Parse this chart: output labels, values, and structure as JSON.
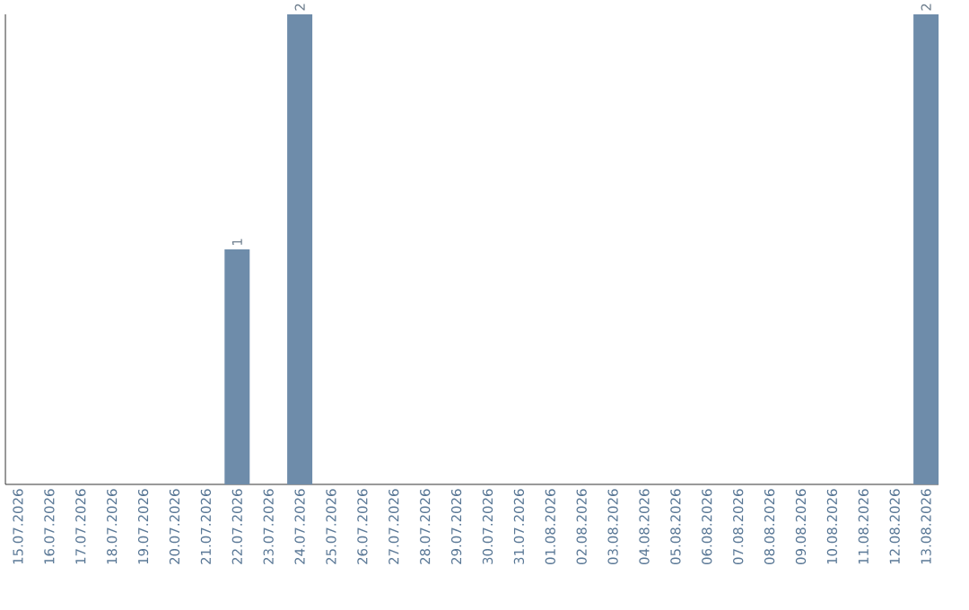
{
  "chart_data": {
    "type": "bar",
    "categories": [
      "15.07.2026",
      "16.07.2026",
      "17.07.2026",
      "18.07.2026",
      "19.07.2026",
      "20.07.2026",
      "21.07.2026",
      "22.07.2026",
      "23.07.2026",
      "24.07.2026",
      "25.07.2026",
      "26.07.2026",
      "27.07.2026",
      "28.07.2026",
      "29.07.2026",
      "30.07.2026",
      "31.07.2026",
      "01.08.2026",
      "02.08.2026",
      "03.08.2026",
      "04.08.2026",
      "05.08.2026",
      "06.08.2026",
      "07.08.2026",
      "08.08.2026",
      "09.08.2026",
      "10.08.2026",
      "11.08.2026",
      "12.08.2026",
      "13.08.2026"
    ],
    "values": [
      0,
      0,
      0,
      0,
      0,
      0,
      0,
      1,
      0,
      2,
      0,
      0,
      0,
      0,
      0,
      0,
      0,
      0,
      0,
      0,
      0,
      0,
      0,
      0,
      0,
      0,
      0,
      0,
      0,
      2
    ],
    "value_labels": [
      null,
      null,
      null,
      null,
      null,
      null,
      null,
      "1",
      null,
      "2",
      null,
      null,
      null,
      null,
      null,
      null,
      null,
      null,
      null,
      null,
      null,
      null,
      null,
      null,
      null,
      null,
      null,
      null,
      null,
      "2"
    ],
    "color": "#6e8caa",
    "tick_labels": "x"
  }
}
